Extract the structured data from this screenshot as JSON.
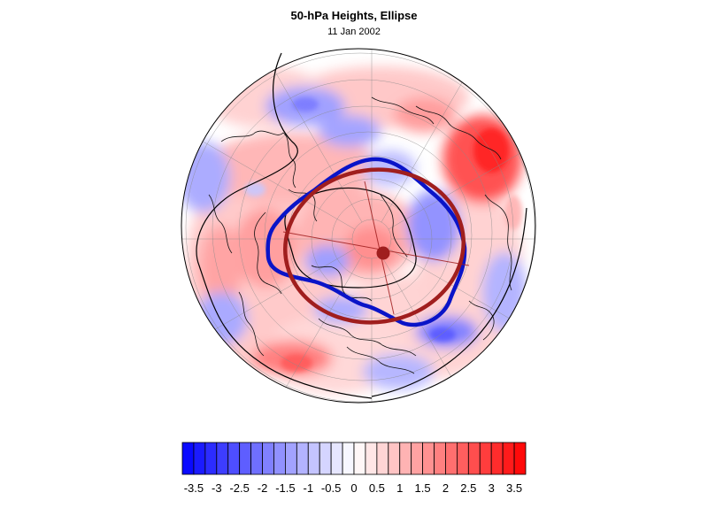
{
  "title": "50-hPa Heights, Ellipse",
  "subtitle": "11 Jan 2002",
  "map": {
    "projection": "north-polar-stereographic",
    "field": "normalized 50-hPa height anomaly",
    "graticule": true,
    "coastlines": true
  },
  "overlays": {
    "vortex_edge": {
      "icon": "vortex-contour-line",
      "color": "#0a14c8"
    },
    "fitted_ellipse": {
      "icon": "ellipse-outline",
      "color": "#a01e1e"
    },
    "ellipse_centroid": {
      "icon": "centroid-dot",
      "color": "#a01e1e"
    }
  },
  "colorbar": {
    "min": -3.75,
    "max": 3.75,
    "step": 0.25,
    "neg_color": "#0a0aff",
    "mid_color": "#ffffff",
    "pos_color": "#ff0a0a",
    "tick_labels": [
      "-3.5",
      "-3",
      "-2.5",
      "-2",
      "-1.5",
      "-1",
      "-0.5",
      "0",
      "0.5",
      "1",
      "1.5",
      "2",
      "2.5",
      "3",
      "3.5"
    ],
    "tick_values": [
      -3.5,
      -3,
      -2.5,
      -2,
      -1.5,
      -1,
      -0.5,
      0,
      0.5,
      1,
      1.5,
      2,
      2.5,
      3,
      3.5
    ]
  }
}
